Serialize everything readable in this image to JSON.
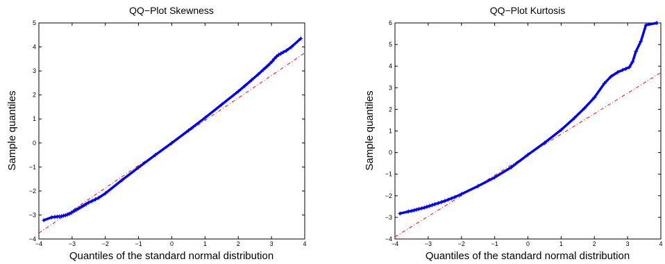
{
  "chart_data": [
    {
      "type": "scatter",
      "title": "QQ−Plot Skewness",
      "xlabel": "Quantiles of the standard normal distribution",
      "ylabel": "Sample quantiles",
      "xlim": [
        -4,
        4
      ],
      "ylim": [
        -4,
        5
      ],
      "xticks": [
        "−4",
        "−3",
        "−2",
        "−1",
        "0",
        "1",
        "2",
        "3",
        "4"
      ],
      "yticks": [
        "−4",
        "−3",
        "−2",
        "−1",
        "0",
        "1",
        "2",
        "3",
        "4",
        "5"
      ],
      "grid": false,
      "reference_line": {
        "x": [
          -4,
          4
        ],
        "y": [
          -3.75,
          3.75
        ]
      },
      "series": [
        {
          "marker": "+",
          "color": "#0000ff",
          "x": [
            -3.85,
            -3.62,
            -3.52,
            -3.45,
            -3.38,
            -3.32,
            -3.26,
            -3.2,
            -3.14,
            -3.08,
            -3.02,
            -2.97,
            -2.92,
            -2.87,
            -2.82,
            -2.77,
            -2.72,
            -2.67,
            -2.62,
            -2.57,
            -2.5,
            -2.4,
            -2.3,
            -2.2,
            -2.0,
            -1.5,
            -1.0,
            -0.5,
            0.0,
            0.5,
            1.0,
            1.5,
            2.0,
            2.2,
            2.4,
            2.6,
            2.75,
            2.85,
            2.95,
            3.02,
            3.08,
            3.15,
            3.22,
            3.28,
            3.35,
            3.45,
            3.6,
            3.88
          ],
          "y": [
            -3.22,
            -3.1,
            -3.08,
            -3.07,
            -3.06,
            -3.05,
            -3.03,
            -3.01,
            -2.98,
            -2.95,
            -2.9,
            -2.86,
            -2.82,
            -2.78,
            -2.74,
            -2.7,
            -2.66,
            -2.62,
            -2.58,
            -2.54,
            -2.48,
            -2.42,
            -2.35,
            -2.28,
            -2.1,
            -1.55,
            -1.02,
            -0.5,
            0.0,
            0.52,
            1.05,
            1.6,
            2.15,
            2.38,
            2.62,
            2.86,
            3.05,
            3.17,
            3.3,
            3.4,
            3.5,
            3.6,
            3.68,
            3.72,
            3.78,
            3.85,
            4.0,
            4.35
          ]
        }
      ]
    },
    {
      "type": "scatter",
      "title": "QQ−Plot Kurtosis",
      "xlabel": "Quantiles of the standard normal distribution",
      "ylabel": "Sample quantiles",
      "xlim": [
        -4,
        4
      ],
      "ylim": [
        -4,
        6
      ],
      "xticks": [
        "−4",
        "−3",
        "−2",
        "−1",
        "0",
        "1",
        "2",
        "3",
        "4"
      ],
      "yticks": [
        "−4",
        "−3",
        "−2",
        "−1",
        "0",
        "1",
        "2",
        "3",
        "4",
        "5",
        "6"
      ],
      "grid": false,
      "reference_line": {
        "x": [
          -4,
          4
        ],
        "y": [
          -3.9,
          3.7
        ]
      },
      "series": [
        {
          "marker": "+",
          "color": "#0000ff",
          "x": [
            -3.85,
            -3.6,
            -3.5,
            -3.42,
            -3.35,
            -3.28,
            -3.2,
            -3.12,
            -3.04,
            -2.96,
            -2.88,
            -2.8,
            -2.7,
            -2.6,
            -2.5,
            -2.4,
            -2.3,
            -2.2,
            -2.0,
            -1.5,
            -1.0,
            -0.5,
            0.0,
            0.5,
            1.0,
            1.4,
            1.7,
            2.0,
            2.3,
            2.5,
            2.7,
            2.85,
            2.95,
            3.05,
            3.15,
            3.25,
            3.4,
            3.55,
            3.88
          ],
          "y": [
            -2.82,
            -2.73,
            -2.7,
            -2.67,
            -2.64,
            -2.61,
            -2.58,
            -2.55,
            -2.51,
            -2.47,
            -2.43,
            -2.39,
            -2.34,
            -2.29,
            -2.24,
            -2.18,
            -2.12,
            -2.06,
            -1.92,
            -1.55,
            -1.15,
            -0.68,
            -0.1,
            0.45,
            1.05,
            1.6,
            2.05,
            2.55,
            3.2,
            3.52,
            3.72,
            3.82,
            3.88,
            3.95,
            4.2,
            4.68,
            5.15,
            5.9,
            6.0
          ]
        }
      ]
    }
  ]
}
